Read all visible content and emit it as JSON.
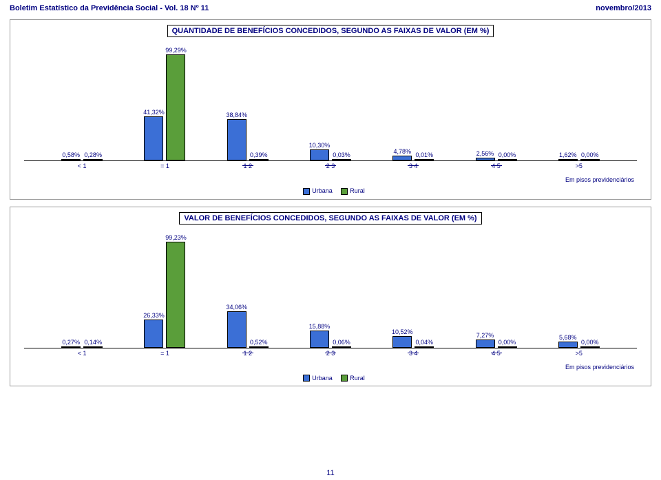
{
  "header": {
    "left": "Boletim Estatístico da Previdência Social - Vol. 18 Nº 11",
    "right": "novembro/2013"
  },
  "colors": {
    "urbana": "#3b6fd6",
    "rural": "#5a9e3a",
    "text": "#000080"
  },
  "legend": {
    "urbana": "Urbana",
    "rural": "Rural"
  },
  "footnote": "Em pisos previdenciários",
  "page_number": "11",
  "chart1": {
    "title": "QUANTIDADE DE BENEFÍCIOS CONCEDIDOS, SEGUNDO AS FAIXAS DE VALOR  (EM %)",
    "ymax": 100,
    "categories": [
      "< 1",
      "= 1",
      "1      2",
      "2      3",
      "3      4",
      "4      5",
      ">5"
    ],
    "urbana": [
      0.58,
      41.32,
      38.84,
      10.3,
      4.78,
      2.56,
      1.62
    ],
    "rural": [
      0.28,
      99.29,
      0.39,
      0.03,
      0.01,
      0.0,
      0.0
    ],
    "urbana_labels": [
      "0,58%",
      "41,32%",
      "38,84%",
      "10,30%",
      "4,78%",
      "2,56%",
      "1,62%"
    ],
    "rural_labels": [
      "0,28%",
      "99,29%",
      "0,39%",
      "0,03%",
      "0,01%",
      "0,00%",
      "0,00%"
    ]
  },
  "chart2": {
    "title": "VALOR DE BENEFÍCIOS CONCEDIDOS, SEGUNDO AS FAIXAS DE VALOR  (EM %)",
    "ymax": 100,
    "categories": [
      "< 1",
      "= 1",
      "1      2",
      "2      3",
      "3      4",
      "4      5",
      ">5"
    ],
    "urbana": [
      0.27,
      26.33,
      34.06,
      15.88,
      10.52,
      7.27,
      5.68
    ],
    "rural": [
      0.14,
      99.23,
      0.52,
      0.06,
      0.04,
      0.0,
      0.0
    ],
    "urbana_labels": [
      "0,27%",
      "26,33%",
      "34,06%",
      "15,88%",
      "10,52%",
      "7,27%",
      "5,68%"
    ],
    "rural_labels": [
      "0,14%",
      "99,23%",
      "0,52%",
      "0,06%",
      "0,04%",
      "0,00%",
      "0,00%"
    ]
  }
}
